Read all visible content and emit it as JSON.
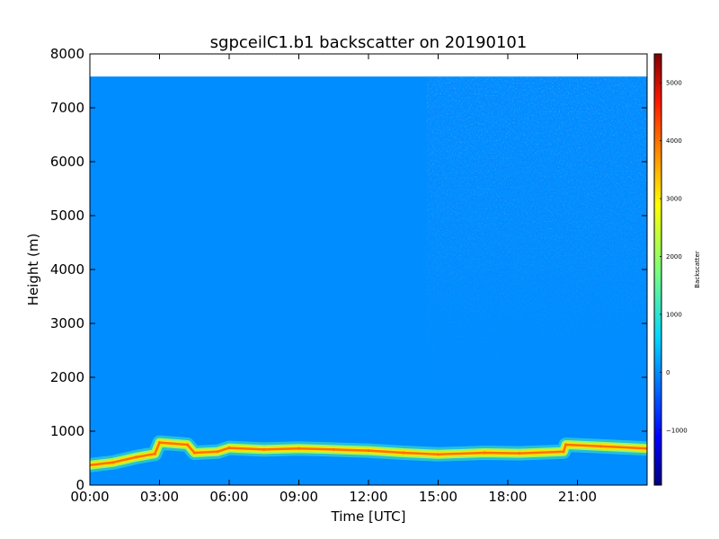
{
  "chart_data": {
    "type": "heatmap",
    "title": "sgpceilC1.b1 backscatter on 20190101",
    "xlabel": "Time [UTC]",
    "ylabel": "Height (m)",
    "x_unit": "hours UTC",
    "xlim": [
      0,
      24
    ],
    "ylim": [
      0,
      8000
    ],
    "data_top_height": 7580,
    "x_ticks": [
      0,
      3,
      6,
      9,
      12,
      15,
      18,
      21
    ],
    "x_tick_labels": [
      "00:00",
      "03:00",
      "06:00",
      "09:00",
      "12:00",
      "15:00",
      "18:00",
      "21:00"
    ],
    "y_ticks": [
      0,
      1000,
      2000,
      3000,
      4000,
      5000,
      6000,
      7000,
      8000
    ],
    "y_tick_labels": [
      "0",
      "1000",
      "2000",
      "3000",
      "4000",
      "5000",
      "6000",
      "7000",
      "8000"
    ],
    "colorbar": {
      "label": "Backscatter",
      "colormap": "jet",
      "vmin": -1950,
      "vmax": 5500,
      "ticks": [
        -1000,
        0,
        1000,
        2000,
        3000,
        4000,
        5000
      ],
      "tick_labels": [
        "−1000",
        "0",
        "1000",
        "2000",
        "3000",
        "4000",
        "5000"
      ]
    },
    "background_value": 0,
    "noisy_region_start_hour": 14.5,
    "cloud_layer": {
      "description": "Aerosol / boundary-layer backscatter maximum",
      "peak_value": 4000,
      "points": [
        {
          "hour": 0.0,
          "height": 370
        },
        {
          "hour": 1.0,
          "height": 420
        },
        {
          "hour": 2.0,
          "height": 520
        },
        {
          "hour": 2.8,
          "height": 580
        },
        {
          "hour": 3.0,
          "height": 790
        },
        {
          "hour": 4.2,
          "height": 750
        },
        {
          "hour": 4.5,
          "height": 600
        },
        {
          "hour": 5.5,
          "height": 620
        },
        {
          "hour": 6.0,
          "height": 690
        },
        {
          "hour": 7.5,
          "height": 660
        },
        {
          "hour": 9.0,
          "height": 680
        },
        {
          "hour": 10.5,
          "height": 660
        },
        {
          "hour": 12.0,
          "height": 640
        },
        {
          "hour": 13.5,
          "height": 600
        },
        {
          "hour": 15.0,
          "height": 570
        },
        {
          "hour": 17.0,
          "height": 600
        },
        {
          "hour": 18.5,
          "height": 590
        },
        {
          "hour": 20.4,
          "height": 620
        },
        {
          "hour": 20.5,
          "height": 750
        },
        {
          "hour": 22.0,
          "height": 720
        },
        {
          "hour": 24.0,
          "height": 680
        }
      ]
    }
  }
}
